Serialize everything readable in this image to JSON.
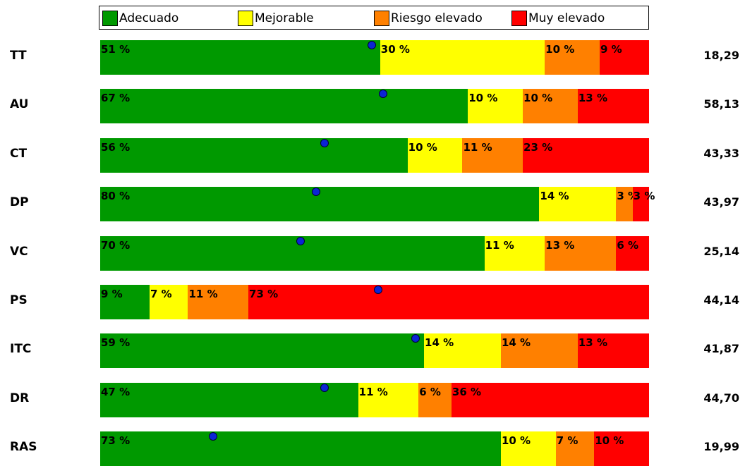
{
  "chart_data": {
    "type": "bar",
    "orientation": "horizontal",
    "stacked": true,
    "legend_position": "top",
    "legend": [
      {
        "name": "Adecuado",
        "color": "#009900"
      },
      {
        "name": "Mejorable",
        "color": "#ffff00"
      },
      {
        "name": "Riesgo elevado",
        "color": "#ff8000"
      },
      {
        "name": "Muy elevado",
        "color": "#ff0000"
      }
    ],
    "dot_color": "#0b24d6",
    "rows": [
      {
        "category": "TT",
        "values": [
          51,
          30,
          10,
          9
        ],
        "labels": [
          "51 %",
          "30 %",
          "10 %",
          "9 %"
        ],
        "dot_percent": 49.5,
        "total": "18,29"
      },
      {
        "category": "AU",
        "values": [
          67,
          10,
          10,
          13
        ],
        "labels": [
          "67 %",
          "10 %",
          "10 %",
          "13 %"
        ],
        "dot_percent": 51.5,
        "total": "58,13"
      },
      {
        "category": "CT",
        "values": [
          56,
          10,
          11,
          23
        ],
        "labels": [
          "56 %",
          "10 %",
          "11 %",
          "23 %"
        ],
        "dot_percent": 40.9,
        "total": "43,33"
      },
      {
        "category": "DP",
        "values": [
          80,
          14,
          3,
          3
        ],
        "labels": [
          "80 %",
          "14 %",
          "3 %",
          "3 %"
        ],
        "dot_percent": 39.3,
        "total": "43,97"
      },
      {
        "category": "VC",
        "values": [
          70,
          11,
          13,
          6
        ],
        "labels": [
          "70 %",
          "11 %",
          "13 %",
          "6 %"
        ],
        "dot_percent": 36.5,
        "total": "25,14"
      },
      {
        "category": "PS",
        "values": [
          9,
          7,
          11,
          73
        ],
        "labels": [
          "9 %",
          "7 %",
          "11 %",
          "73 %"
        ],
        "dot_percent": 50.7,
        "total": "44,14"
      },
      {
        "category": "ITC",
        "values": [
          59,
          14,
          14,
          13
        ],
        "labels": [
          "59 %",
          "14 %",
          "14 %",
          "13 %"
        ],
        "dot_percent": 57.5,
        "total": "41,87"
      },
      {
        "category": "DR",
        "values": [
          47,
          11,
          6,
          36
        ],
        "labels": [
          "47 %",
          "11 %",
          "6 %",
          "36 %"
        ],
        "dot_percent": 40.9,
        "total": "44,70"
      },
      {
        "category": "RAS",
        "values": [
          73,
          10,
          7,
          10
        ],
        "labels": [
          "73 %",
          "10 %",
          "7 %",
          "10 %"
        ],
        "dot_percent": 20.6,
        "total": "19,99"
      }
    ]
  }
}
